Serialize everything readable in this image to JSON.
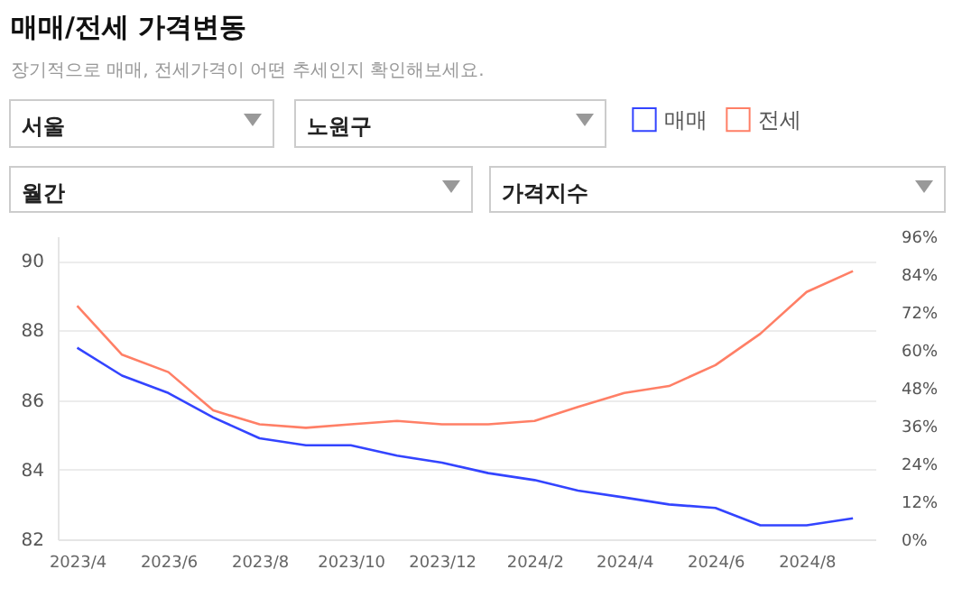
{
  "chart_data": {
    "type": "line",
    "title": "매매/전세 가격변동",
    "subtitle": "장기적으로 매매, 전세가격이 어떤 추세인지 확인해보세요.",
    "annotations": [
      "서울",
      "노원구",
      "월간",
      "가격지수"
    ],
    "x": [
      "2023-04",
      "2023-05",
      "2023-06",
      "2023-07",
      "2023-08",
      "2023-09",
      "2023-10",
      "2023-11",
      "2023-12",
      "2024-01",
      "2024-02",
      "2024-03",
      "2024-04",
      "2024-05",
      "2024-06",
      "2024-07",
      "2024-08",
      "2024-09"
    ],
    "series": [
      {
        "name": "매매",
        "color": "#3344ff",
        "values": [
          87.5,
          86.7,
          86.2,
          85.5,
          84.9,
          84.7,
          84.7,
          84.4,
          84.2,
          83.9,
          83.7,
          83.4,
          83.2,
          83.0,
          82.9,
          82.4,
          82.4,
          82.6
        ]
      },
      {
        "name": "전세",
        "color": "#ff7f66",
        "values": [
          88.7,
          87.3,
          86.8,
          85.7,
          85.3,
          85.2,
          85.3,
          85.4,
          85.3,
          85.3,
          85.4,
          85.8,
          86.2,
          86.4,
          87.0,
          87.9,
          89.1,
          89.7
        ]
      }
    ],
    "xlim": [
      "2023-03-19",
      "2024-09-16"
    ],
    "xticks": [
      {
        "value": "2023-04",
        "label": "2023/4"
      },
      {
        "value": "2023-06",
        "label": "2023/6"
      },
      {
        "value": "2023-08",
        "label": "2023/8"
      },
      {
        "value": "2023-10",
        "label": "2023/10"
      },
      {
        "value": "2023-12",
        "label": "2023/12"
      },
      {
        "value": "2024-02",
        "label": "2024/2"
      },
      {
        "value": "2024-04",
        "label": "2024/4"
      },
      {
        "value": "2024-06",
        "label": "2024/6"
      },
      {
        "value": "2024-08",
        "label": "2024/8"
      }
    ],
    "ylim": [
      82,
      90.7
    ],
    "yticks": [
      82,
      84,
      86,
      88,
      90
    ],
    "y2lim": [
      0,
      96
    ],
    "y2ticks": [
      {
        "value": 0,
        "label": "0%"
      },
      {
        "value": 12,
        "label": "12%"
      },
      {
        "value": 24,
        "label": "24%"
      },
      {
        "value": 36,
        "label": "36%"
      },
      {
        "value": 48,
        "label": "48%"
      },
      {
        "value": 60,
        "label": "60%"
      },
      {
        "value": 72,
        "label": "72%"
      },
      {
        "value": 84,
        "label": "84%"
      },
      {
        "value": 96,
        "label": "96%"
      }
    ],
    "grid": "y",
    "legend": "top right",
    "marker": "none",
    "line_style": "solid"
  }
}
